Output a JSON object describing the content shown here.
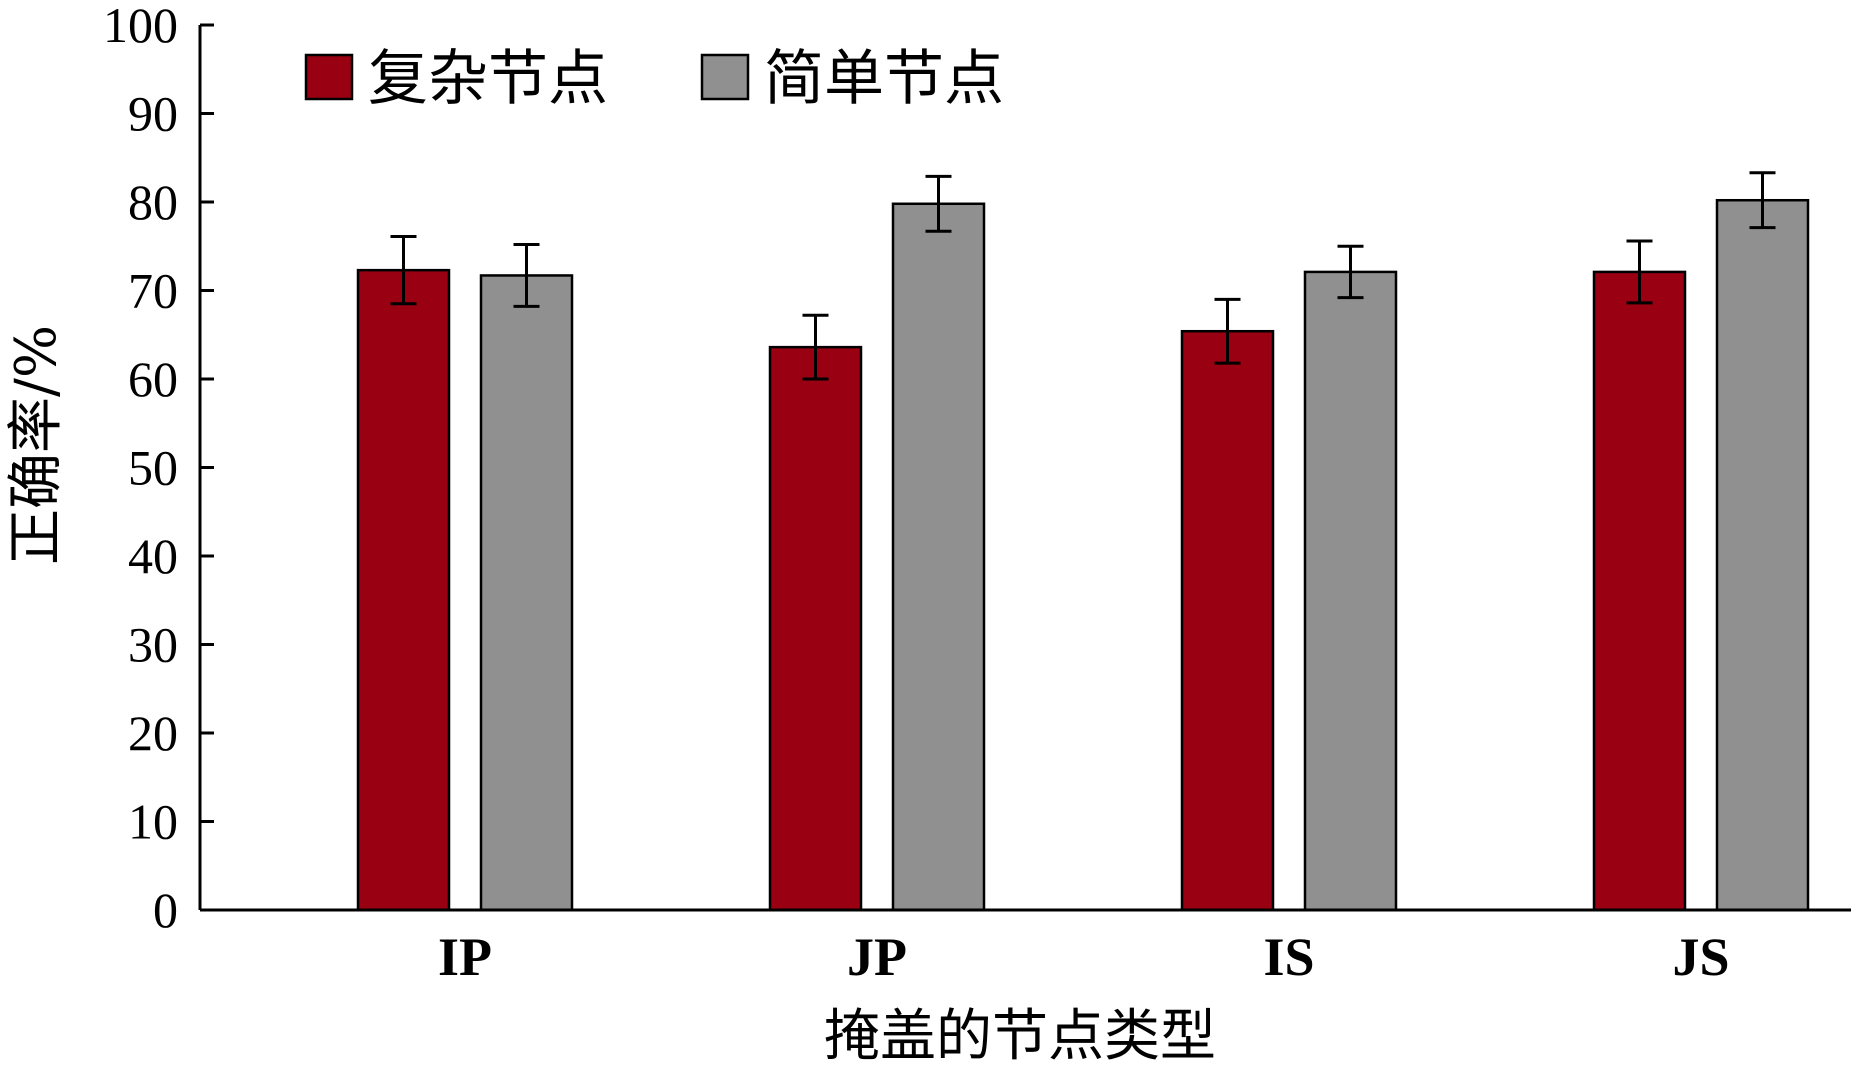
{
  "chart_data": {
    "type": "bar",
    "categories": [
      "IP",
      "JP",
      "IS",
      "JS"
    ],
    "series": [
      {
        "name": "复杂节点",
        "color": "#990011",
        "values": [
          72.3,
          63.6,
          65.4,
          72.1
        ],
        "errors": [
          3.8,
          3.6,
          3.6,
          3.5
        ]
      },
      {
        "name": "简单节点",
        "color": "#909090",
        "values": [
          71.7,
          79.8,
          72.1,
          80.2
        ],
        "errors": [
          3.5,
          3.1,
          2.9,
          3.1
        ]
      }
    ],
    "xlabel": "掩盖的节点类型",
    "ylabel": "正确率/%",
    "ylim": [
      0,
      100
    ],
    "yticks": [
      0,
      10,
      20,
      30,
      40,
      50,
      60,
      70,
      80,
      90,
      100
    ],
    "legend_position": "top-left",
    "grid": false
  }
}
